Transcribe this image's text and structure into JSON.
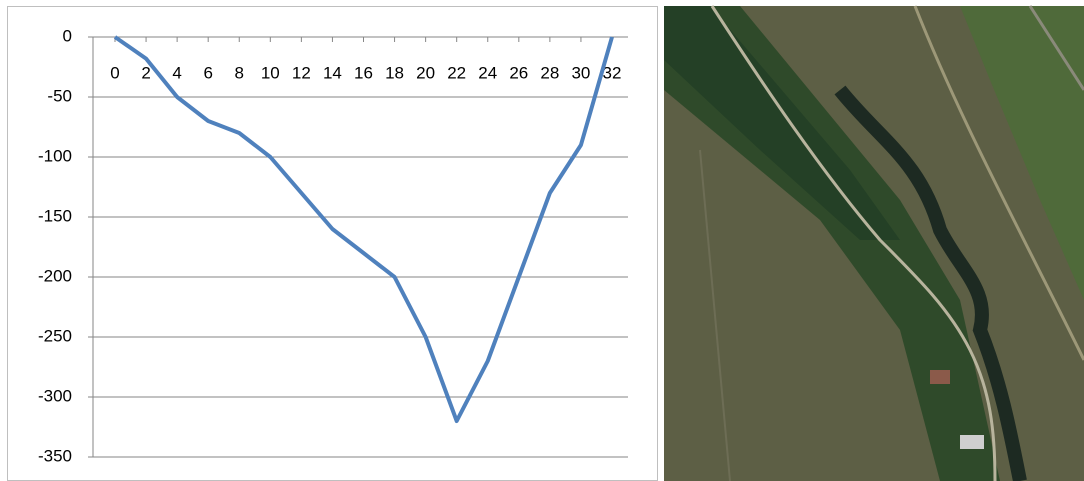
{
  "chart_data": {
    "type": "line",
    "x": [
      0,
      2,
      4,
      6,
      8,
      10,
      12,
      14,
      16,
      18,
      20,
      22,
      24,
      26,
      28,
      30,
      32
    ],
    "series": [
      {
        "color": "#4f81bd",
        "values": [
          0,
          -18,
          -50,
          -70,
          -80,
          -100,
          -130,
          -160,
          -180,
          -200,
          -250,
          -320,
          -270,
          -200,
          -130,
          -90,
          0
        ]
      }
    ],
    "xlim": [
      0,
      32
    ],
    "xticks": [
      0,
      2,
      4,
      6,
      8,
      10,
      12,
      14,
      16,
      18,
      20,
      22,
      24,
      26,
      28,
      30,
      32
    ],
    "ylim": [
      -350,
      0
    ],
    "yticks": [
      0,
      -50,
      -100,
      -150,
      -200,
      -250,
      -300,
      -350
    ],
    "grid": true
  }
}
